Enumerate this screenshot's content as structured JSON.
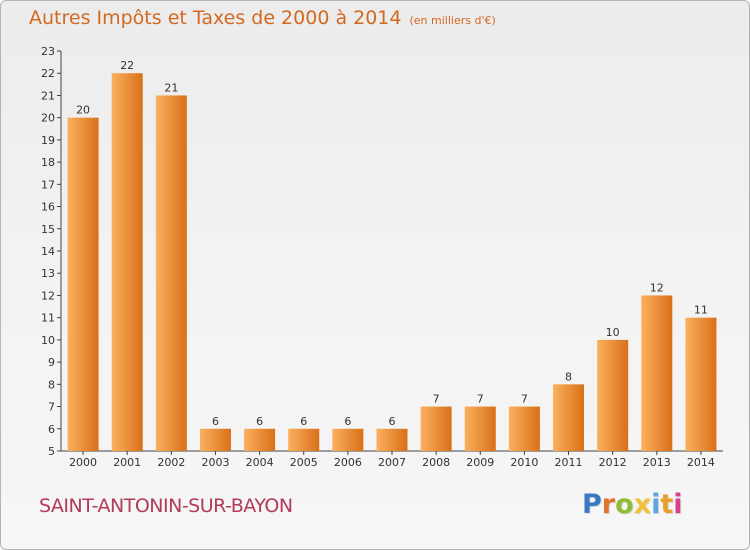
{
  "header": {
    "title": "Autres Impôts et Taxes de 2000 à 2014",
    "subtitle": "(en milliers d'€)"
  },
  "footer": {
    "commune": "SAINT-ANTONIN-SUR-BAYON",
    "brand": "Proxiti"
  },
  "colors": {
    "bar_light": "#fbb05e",
    "bar_dark": "#d97018",
    "title": "#d2691e",
    "commune": "#b23a5a",
    "brand_letters": [
      "#3a78c3",
      "#e3722a",
      "#8fbd35",
      "#f1c13b",
      "#5aa6dd",
      "#e9a12e",
      "#d9418c"
    ]
  },
  "chart_data": {
    "type": "bar",
    "title": "Autres Impôts et Taxes de 2000 à 2014",
    "subtitle": "(en milliers d'€)",
    "categories": [
      "2000",
      "2001",
      "2002",
      "2003",
      "2004",
      "2005",
      "2006",
      "2007",
      "2008",
      "2009",
      "2010",
      "2011",
      "2012",
      "2013",
      "2014"
    ],
    "values": [
      20,
      22,
      21,
      6,
      6,
      6,
      6,
      6,
      7,
      7,
      7,
      8,
      10,
      12,
      11
    ],
    "value_labels": [
      "20",
      "22",
      "21",
      "6",
      "6",
      "6",
      "6",
      "6",
      "7",
      "7",
      "7",
      "8",
      "10",
      "12",
      "11"
    ],
    "yticks": [
      "5",
      "6",
      "7",
      "8",
      "9",
      "10",
      "11",
      "12",
      "13",
      "14",
      "15",
      "16",
      "17",
      "18",
      "19",
      "20",
      "21",
      "22",
      "23"
    ],
    "ylim": [
      5,
      23
    ],
    "grid": false,
    "legend": "none"
  }
}
